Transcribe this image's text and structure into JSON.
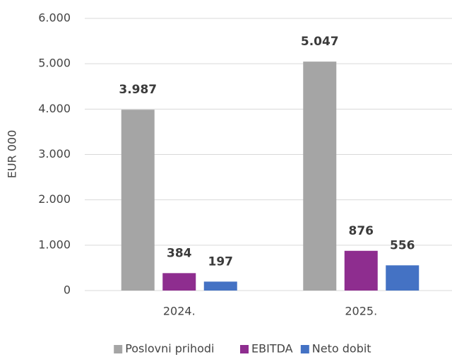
{
  "chart_data": {
    "type": "bar",
    "categories": [
      "2024.",
      "2025."
    ],
    "series": [
      {
        "name": "Poslovni prihodi",
        "color": "#a5a5a5",
        "values": [
          3987,
          5047
        ],
        "value_labels": [
          "3.987",
          "5.047"
        ]
      },
      {
        "name": "EBITDA",
        "color": "#8e2d8f",
        "values": [
          384,
          876
        ],
        "value_labels": [
          "384",
          "876"
        ]
      },
      {
        "name": "Neto dobit",
        "color": "#4472c4",
        "values": [
          197,
          556
        ],
        "value_labels": [
          "197",
          "556"
        ]
      }
    ],
    "ylabel": "EUR 000",
    "ylim": [
      0,
      6000
    ],
    "yticks": [
      0,
      {
        "value": 1000,
        "label": "1.000"
      },
      {
        "value": 2000,
        "label": "2.000"
      },
      {
        "value": 3000,
        "label": "3.000"
      },
      {
        "value": 4000,
        "label": "4.000"
      },
      {
        "value": 5000,
        "label": "5.000"
      },
      {
        "value": 6000,
        "label": "6.000"
      }
    ],
    "grid": true,
    "legend": "bottom"
  }
}
